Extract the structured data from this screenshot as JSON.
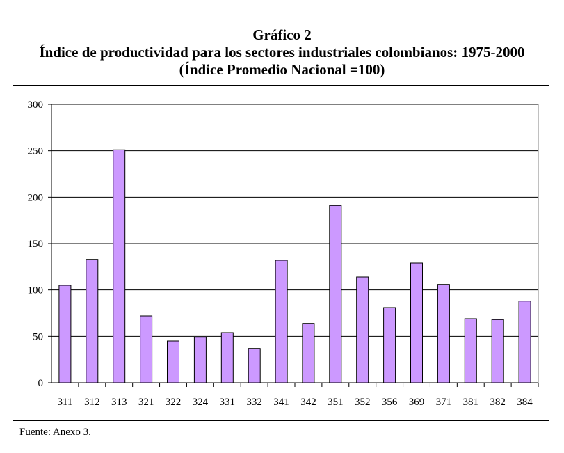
{
  "title": {
    "line1": "Gráfico 2",
    "line2": "Índice de productividad para los sectores industriales colombianos: 1975-2000",
    "line3": "(Índice Promedio Nacional =100)"
  },
  "source": "Fuente: Anexo 3.",
  "colors": {
    "bar_fill": "#cc99ff",
    "bar_stroke": "#000000",
    "gridline": "#000000"
  },
  "chart_data": {
    "type": "bar",
    "title": "Índice de productividad para los sectores industriales colombianos: 1975-2000",
    "subtitle": "(Índice Promedio Nacional =100)",
    "xlabel": "",
    "ylabel": "",
    "ylim": [
      0,
      300
    ],
    "yticks": [
      0,
      50,
      100,
      150,
      200,
      250,
      300
    ],
    "grid": true,
    "legend": "none",
    "categories": [
      "311",
      "312",
      "313",
      "321",
      "322",
      "324",
      "331",
      "332",
      "341",
      "342",
      "351",
      "352",
      "356",
      "369",
      "371",
      "381",
      "382",
      "384"
    ],
    "values": [
      105,
      133,
      251,
      72,
      45,
      49,
      54,
      37,
      132,
      64,
      191,
      114,
      81,
      129,
      106,
      69,
      68,
      88
    ]
  }
}
